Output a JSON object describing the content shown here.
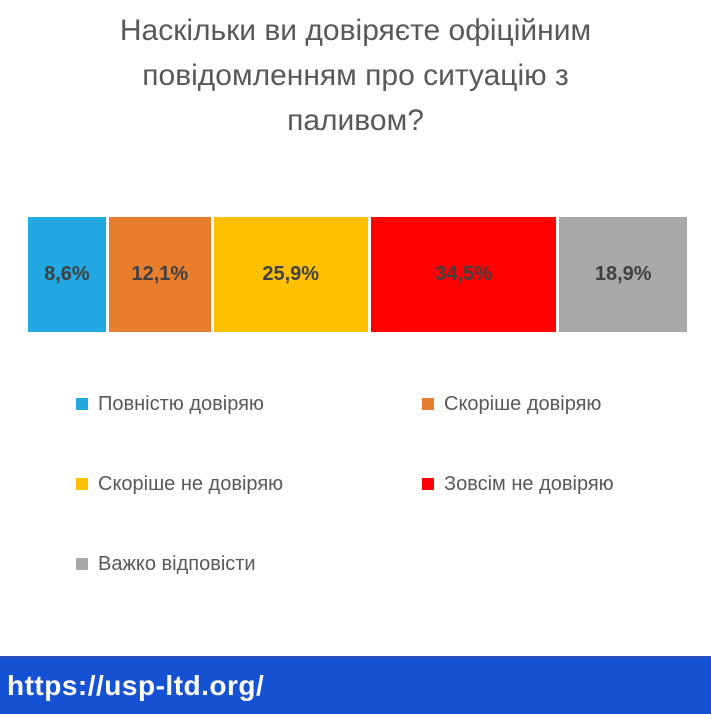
{
  "title": "Наскільки ви довіряєте офіційним повідомленням про ситуацію з паливом?",
  "chart_data": {
    "type": "bar",
    "subtype": "horizontal-stacked-100-percent",
    "title": "Наскільки ви довіряєте офіційним повідомленням про ситуацію з паливом?",
    "xlim": [
      0,
      100
    ],
    "grid": false,
    "legend_position": "bottom",
    "series": [
      {
        "name": "Повністю довіряю",
        "value": 8.6,
        "label": "8,6%",
        "color": "#23a9e1"
      },
      {
        "name": "Скоріше довіряю",
        "value": 12.1,
        "label": "12,1%",
        "color": "#e87d2d"
      },
      {
        "name": "Скоріше не довіряю",
        "value": 25.9,
        "label": "25,9%",
        "color": "#ffc000"
      },
      {
        "name": "Зовсім не довіряю",
        "value": 34.5,
        "label": "34,5%",
        "color": "#fe0000"
      },
      {
        "name": "Важко відповісти",
        "value": 18.9,
        "label": "18,9%",
        "color": "#a9a9a9"
      }
    ]
  },
  "footer": {
    "url": "https://usp-ltd.org/",
    "background": "#1451d3"
  }
}
